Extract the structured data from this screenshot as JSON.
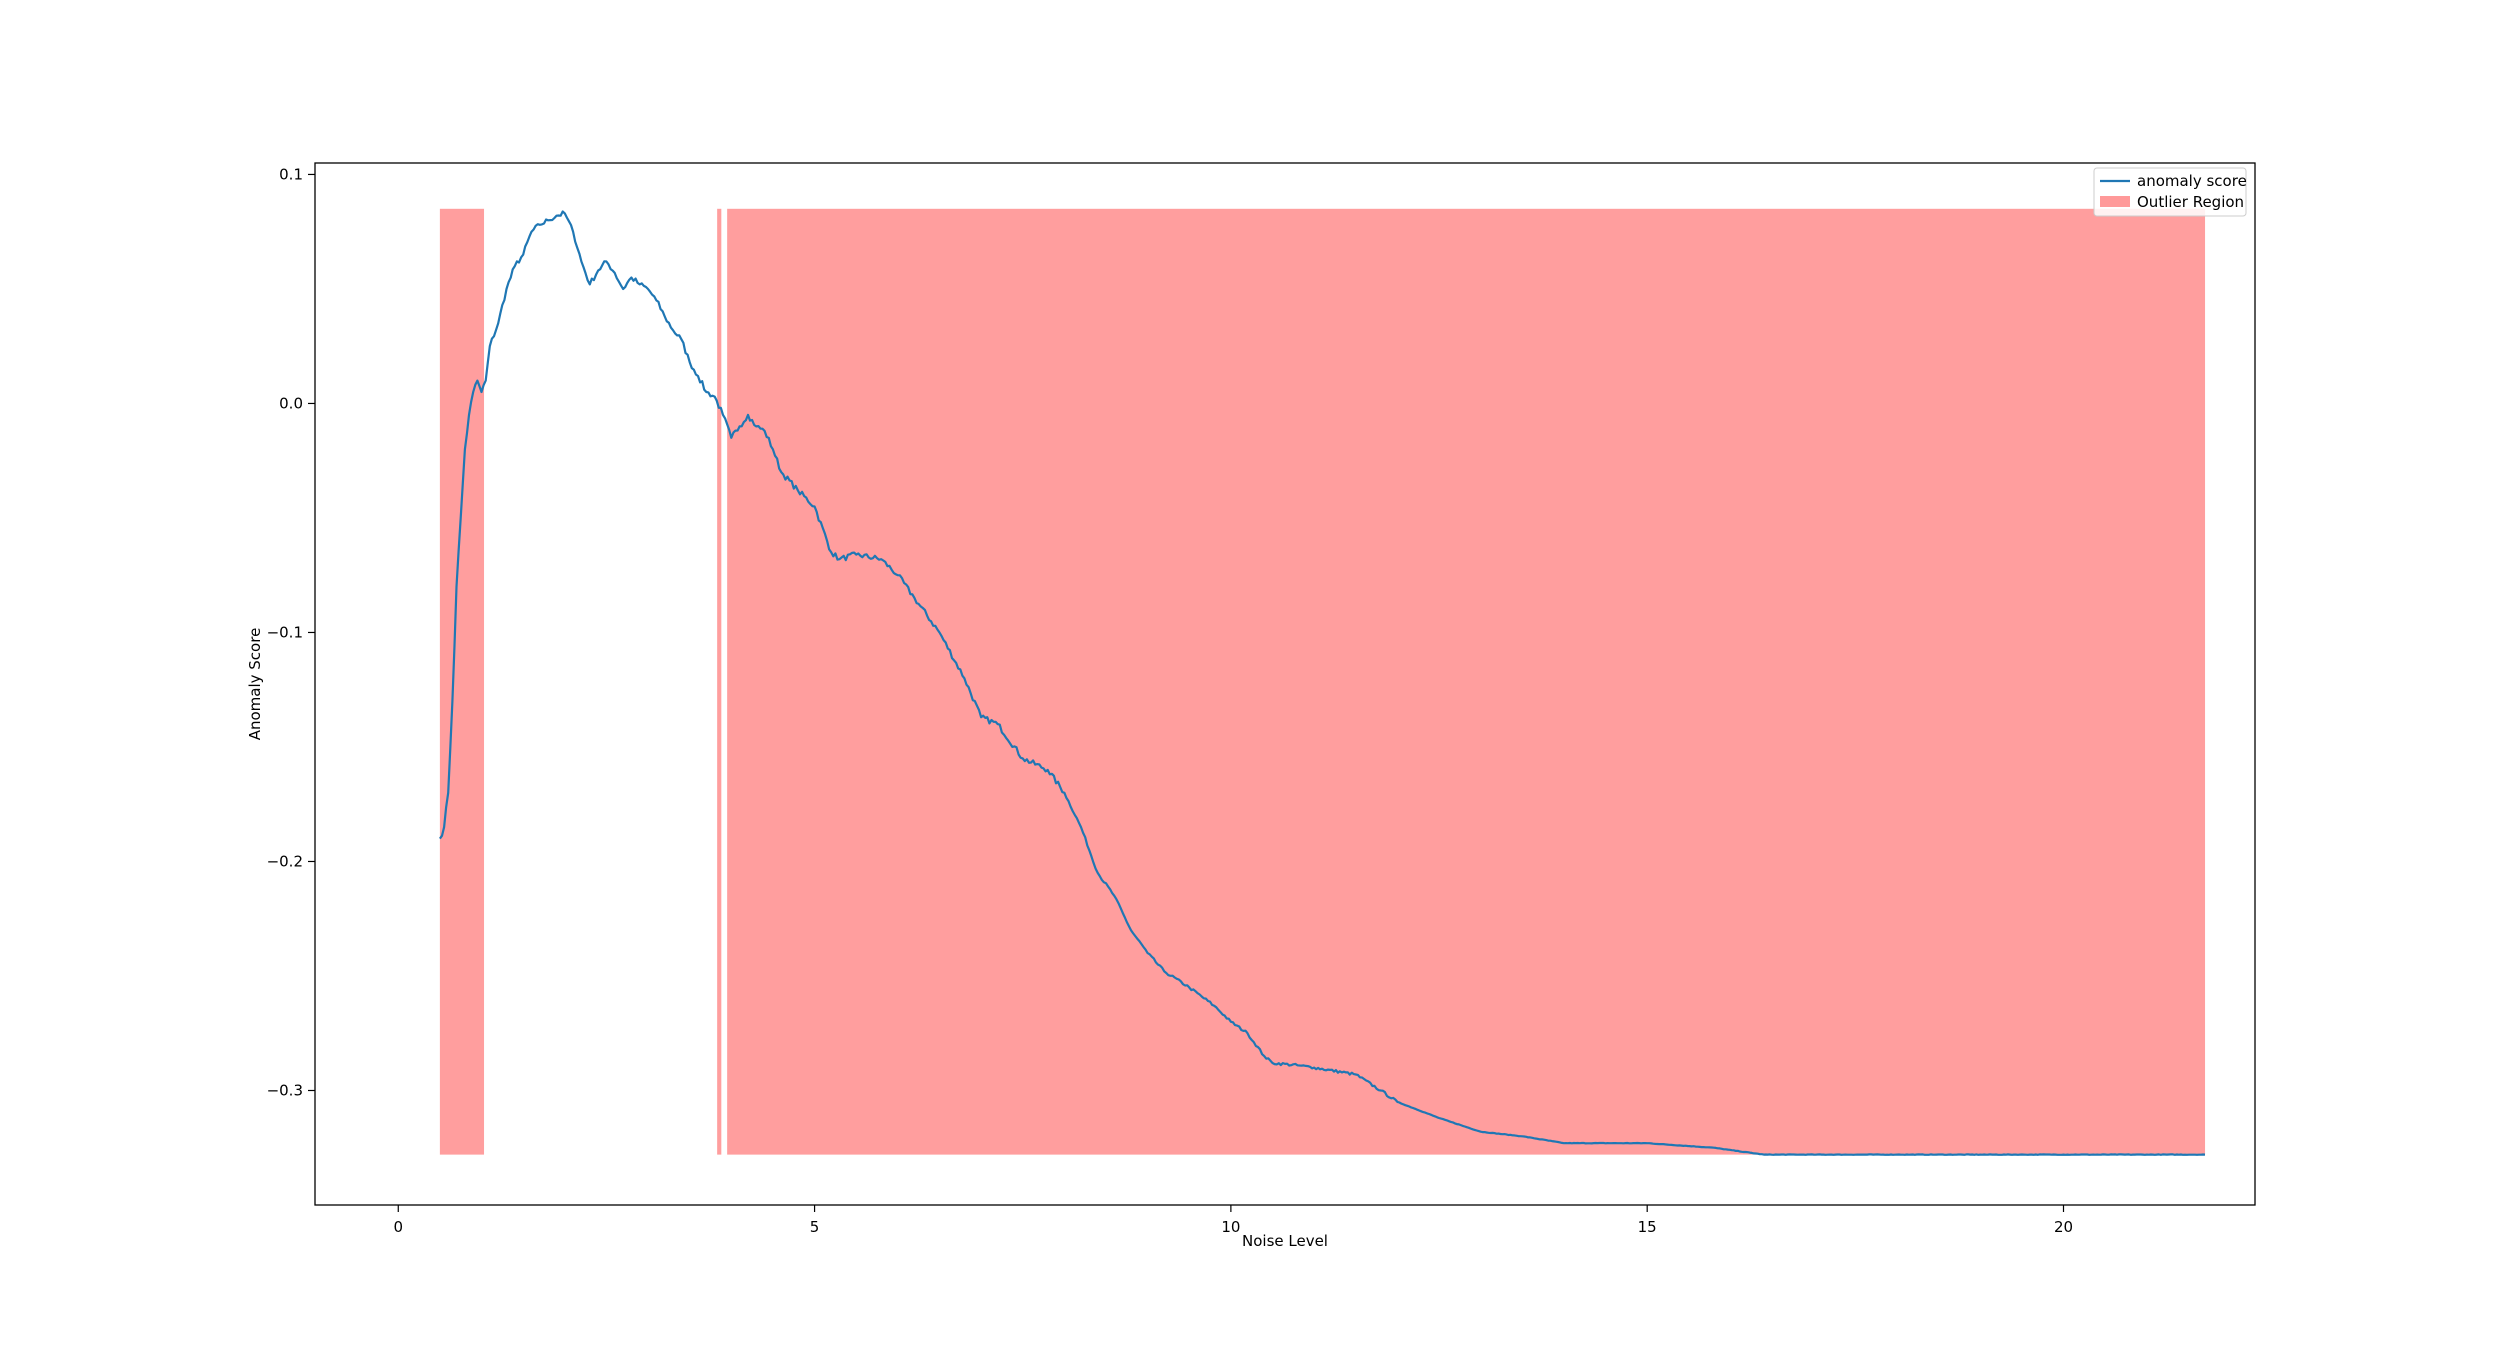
{
  "chart_data": {
    "type": "line",
    "title": "",
    "xlabel": "Noise Level",
    "ylabel": "Anomaly Score",
    "xlim": [
      -1.0,
      22.3
    ],
    "ylim": [
      -0.35,
      0.105
    ],
    "x_ticks": [
      0,
      5,
      10,
      15,
      20
    ],
    "x_tick_labels": [
      "0",
      "5",
      "10",
      "15",
      "20"
    ],
    "y_ticks": [
      0.1,
      0.0,
      -0.1,
      -0.2,
      -0.3
    ],
    "y_tick_labels": [
      "0.1",
      "0.0",
      "−0.1",
      "−0.2",
      "−0.3"
    ],
    "grid": false,
    "legend_position": "top-right",
    "series": [
      {
        "name": "anomaly score",
        "color": "#1f77b4",
        "x": [
          0.5,
          0.55,
          0.6,
          0.65,
          0.7,
          0.75,
          0.8,
          0.85,
          0.9,
          0.95,
          1.0,
          1.05,
          1.1,
          1.2,
          1.3,
          1.4,
          1.5,
          1.6,
          1.7,
          1.8,
          1.9,
          2.0,
          2.1,
          2.2,
          2.3,
          2.4,
          2.5,
          2.6,
          2.7,
          2.8,
          2.9,
          3.0,
          3.1,
          3.2,
          3.3,
          3.4,
          3.5,
          3.6,
          3.7,
          3.8,
          3.9,
          4.0,
          4.1,
          4.2,
          4.3,
          4.4,
          4.5,
          4.6,
          4.8,
          5.0,
          5.2,
          5.3,
          5.5,
          5.8,
          6.0,
          6.2,
          6.5,
          6.8,
          7.0,
          7.2,
          7.5,
          7.8,
          8.0,
          8.2,
          8.4,
          8.6,
          8.8,
          9.0,
          9.2,
          9.5,
          9.8,
          10.0,
          10.2,
          10.4,
          10.5,
          10.8,
          11.0,
          11.5,
          11.8,
          12.0,
          12.5,
          13.0,
          13.5,
          14.0,
          15.0,
          15.8,
          16.4,
          17.0,
          18.0,
          19.0,
          20.0,
          21.0,
          21.7
        ],
        "values": [
          -0.19,
          -0.185,
          -0.17,
          -0.13,
          -0.08,
          -0.05,
          -0.02,
          -0.005,
          0.005,
          0.01,
          0.005,
          0.01,
          0.025,
          0.035,
          0.05,
          0.06,
          0.065,
          0.075,
          0.078,
          0.08,
          0.082,
          0.083,
          0.075,
          0.062,
          0.052,
          0.058,
          0.062,
          0.057,
          0.05,
          0.055,
          0.052,
          0.05,
          0.045,
          0.038,
          0.032,
          0.028,
          0.018,
          0.012,
          0.005,
          0.003,
          -0.005,
          -0.015,
          -0.01,
          -0.005,
          -0.01,
          -0.012,
          -0.02,
          -0.03,
          -0.038,
          -0.045,
          -0.065,
          -0.068,
          -0.066,
          -0.068,
          -0.075,
          -0.085,
          -0.1,
          -0.12,
          -0.137,
          -0.14,
          -0.155,
          -0.16,
          -0.17,
          -0.185,
          -0.205,
          -0.215,
          -0.23,
          -0.24,
          -0.248,
          -0.255,
          -0.263,
          -0.27,
          -0.275,
          -0.285,
          -0.288,
          -0.289,
          -0.29,
          -0.293,
          -0.3,
          -0.305,
          -0.312,
          -0.318,
          -0.32,
          -0.323,
          -0.323,
          -0.325,
          -0.328,
          -0.328,
          -0.328,
          -0.328,
          -0.328,
          -0.328,
          -0.328
        ]
      }
    ],
    "outlier_regions": {
      "name": "Outlier Region",
      "color": "#ff9999",
      "y_range": [
        -0.328,
        0.085
      ],
      "intervals": [
        [
          0.5,
          1.03
        ],
        [
          3.83,
          3.88
        ],
        [
          3.95,
          21.7
        ]
      ]
    }
  }
}
